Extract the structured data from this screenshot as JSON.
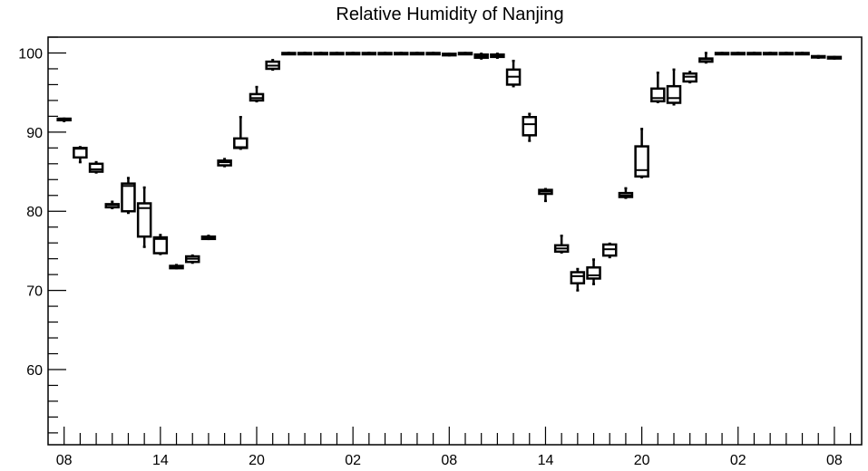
{
  "chart_data": {
    "type": "box",
    "title": "Relative Humidity of Nanjing",
    "xlabel": "",
    "ylabel": "",
    "ylim": [
      50.5,
      102
    ],
    "y_major_ticks": [
      60,
      70,
      80,
      90,
      100
    ],
    "x_tick_labels": [
      "08",
      "14",
      "20",
      "02",
      "08",
      "14",
      "20",
      "02",
      "08"
    ],
    "x_tick_hours": [
      0,
      6,
      12,
      18,
      24,
      30,
      36,
      42,
      48
    ],
    "grid": false,
    "boxes": [
      {
        "x": 0,
        "min": 91.4,
        "q1": 91.5,
        "median": 91.6,
        "q3": 91.7,
        "max": 91.7
      },
      {
        "x": 1,
        "min": 86.2,
        "q1": 86.8,
        "median": 87.9,
        "q3": 88.0,
        "max": 88.1
      },
      {
        "x": 2,
        "min": 84.9,
        "q1": 85.0,
        "median": 85.3,
        "q3": 86.0,
        "max": 86.2
      },
      {
        "x": 3,
        "min": 80.4,
        "q1": 80.5,
        "median": 80.8,
        "q3": 80.9,
        "max": 81.2
      },
      {
        "x": 4,
        "min": 79.8,
        "q1": 80.0,
        "median": 83.2,
        "q3": 83.5,
        "max": 84.2
      },
      {
        "x": 5,
        "min": 75.5,
        "q1": 76.8,
        "median": 80.4,
        "q3": 81.0,
        "max": 83.0
      },
      {
        "x": 6,
        "min": 74.6,
        "q1": 74.7,
        "median": 76.5,
        "q3": 76.7,
        "max": 77.0
      },
      {
        "x": 7,
        "min": 72.8,
        "q1": 72.8,
        "median": 73.0,
        "q3": 73.1,
        "max": 73.2
      },
      {
        "x": 8,
        "min": 73.5,
        "q1": 73.6,
        "median": 74.0,
        "q3": 74.3,
        "max": 74.4
      },
      {
        "x": 9,
        "min": 76.5,
        "q1": 76.5,
        "median": 76.7,
        "q3": 76.8,
        "max": 76.9
      },
      {
        "x": 10,
        "min": 85.7,
        "q1": 85.8,
        "median": 86.2,
        "q3": 86.4,
        "max": 86.6
      },
      {
        "x": 11,
        "min": 87.9,
        "q1": 88.0,
        "median": 88.1,
        "q3": 89.2,
        "max": 91.9
      },
      {
        "x": 12,
        "min": 93.9,
        "q1": 94.0,
        "median": 94.3,
        "q3": 94.8,
        "max": 95.7
      },
      {
        "x": 13,
        "min": 97.9,
        "q1": 98.0,
        "median": 98.4,
        "q3": 98.9,
        "max": 99.1
      },
      {
        "x": 14,
        "min": 100.0,
        "q1": 100.0,
        "median": 100.0,
        "q3": 100.0,
        "max": 100.0
      },
      {
        "x": 15,
        "min": 100.0,
        "q1": 100.0,
        "median": 100.0,
        "q3": 100.0,
        "max": 100.0
      },
      {
        "x": 16,
        "min": 100.0,
        "q1": 100.0,
        "median": 100.0,
        "q3": 100.0,
        "max": 100.0
      },
      {
        "x": 17,
        "min": 100.0,
        "q1": 100.0,
        "median": 100.0,
        "q3": 100.0,
        "max": 100.0
      },
      {
        "x": 18,
        "min": 100.0,
        "q1": 100.0,
        "median": 100.0,
        "q3": 100.0,
        "max": 100.0
      },
      {
        "x": 19,
        "min": 100.0,
        "q1": 100.0,
        "median": 100.0,
        "q3": 100.0,
        "max": 100.0
      },
      {
        "x": 20,
        "min": 100.0,
        "q1": 100.0,
        "median": 100.0,
        "q3": 100.0,
        "max": 100.0
      },
      {
        "x": 21,
        "min": 100.0,
        "q1": 100.0,
        "median": 100.0,
        "q3": 100.0,
        "max": 100.0
      },
      {
        "x": 22,
        "min": 100.0,
        "q1": 100.0,
        "median": 100.0,
        "q3": 100.0,
        "max": 100.0
      },
      {
        "x": 23,
        "min": 100.0,
        "q1": 100.0,
        "median": 100.0,
        "q3": 100.0,
        "max": 100.0
      },
      {
        "x": 24,
        "min": 99.7,
        "q1": 99.7,
        "median": 99.8,
        "q3": 99.9,
        "max": 99.9
      },
      {
        "x": 25,
        "min": 99.9,
        "q1": 99.9,
        "median": 100.0,
        "q3": 100.0,
        "max": 100.0
      },
      {
        "x": 26,
        "min": 99.3,
        "q1": 99.4,
        "median": 99.6,
        "q3": 99.8,
        "max": 99.9
      },
      {
        "x": 27,
        "min": 99.4,
        "q1": 99.5,
        "median": 99.7,
        "q3": 99.8,
        "max": 99.9
      },
      {
        "x": 28,
        "min": 95.8,
        "q1": 96.0,
        "median": 97.0,
        "q3": 97.9,
        "max": 99.0
      },
      {
        "x": 29,
        "min": 88.9,
        "q1": 89.6,
        "median": 91.0,
        "q3": 91.9,
        "max": 92.3
      },
      {
        "x": 30,
        "min": 81.3,
        "q1": 82.2,
        "median": 82.5,
        "q3": 82.7,
        "max": 82.8
      },
      {
        "x": 31,
        "min": 74.8,
        "q1": 74.9,
        "median": 75.3,
        "q3": 75.7,
        "max": 76.9
      },
      {
        "x": 32,
        "min": 70.0,
        "q1": 70.9,
        "median": 71.8,
        "q3": 72.3,
        "max": 72.7
      },
      {
        "x": 33,
        "min": 70.8,
        "q1": 71.5,
        "median": 71.9,
        "q3": 72.9,
        "max": 73.9
      },
      {
        "x": 34,
        "min": 74.2,
        "q1": 74.4,
        "median": 75.2,
        "q3": 75.8,
        "max": 75.9
      },
      {
        "x": 35,
        "min": 81.7,
        "q1": 81.8,
        "median": 82.0,
        "q3": 82.3,
        "max": 82.9
      },
      {
        "x": 36,
        "min": 84.3,
        "q1": 84.4,
        "median": 85.2,
        "q3": 88.2,
        "max": 90.4
      },
      {
        "x": 37,
        "min": 93.8,
        "q1": 93.9,
        "median": 94.3,
        "q3": 95.5,
        "max": 97.5
      },
      {
        "x": 38,
        "min": 93.5,
        "q1": 93.7,
        "median": 94.3,
        "q3": 95.8,
        "max": 97.9
      },
      {
        "x": 39,
        "min": 96.3,
        "q1": 96.4,
        "median": 97.0,
        "q3": 97.4,
        "max": 97.6
      },
      {
        "x": 40,
        "min": 98.8,
        "q1": 98.9,
        "median": 99.2,
        "q3": 99.3,
        "max": 100.0
      },
      {
        "x": 41,
        "min": 99.9,
        "q1": 100.0,
        "median": 100.0,
        "q3": 100.0,
        "max": 100.0
      },
      {
        "x": 42,
        "min": 100.0,
        "q1": 100.0,
        "median": 100.0,
        "q3": 100.0,
        "max": 100.0
      },
      {
        "x": 43,
        "min": 100.0,
        "q1": 100.0,
        "median": 100.0,
        "q3": 100.0,
        "max": 100.0
      },
      {
        "x": 44,
        "min": 100.0,
        "q1": 100.0,
        "median": 100.0,
        "q3": 100.0,
        "max": 100.0
      },
      {
        "x": 45,
        "min": 100.0,
        "q1": 100.0,
        "median": 100.0,
        "q3": 100.0,
        "max": 100.0
      },
      {
        "x": 46,
        "min": 100.0,
        "q1": 100.0,
        "median": 100.0,
        "q3": 100.0,
        "max": 100.0
      },
      {
        "x": 47,
        "min": 99.4,
        "q1": 99.5,
        "median": 99.5,
        "q3": 99.6,
        "max": 99.6
      },
      {
        "x": 48,
        "min": 99.3,
        "q1": 99.3,
        "median": 99.4,
        "q3": 99.5,
        "max": 99.5
      }
    ]
  }
}
